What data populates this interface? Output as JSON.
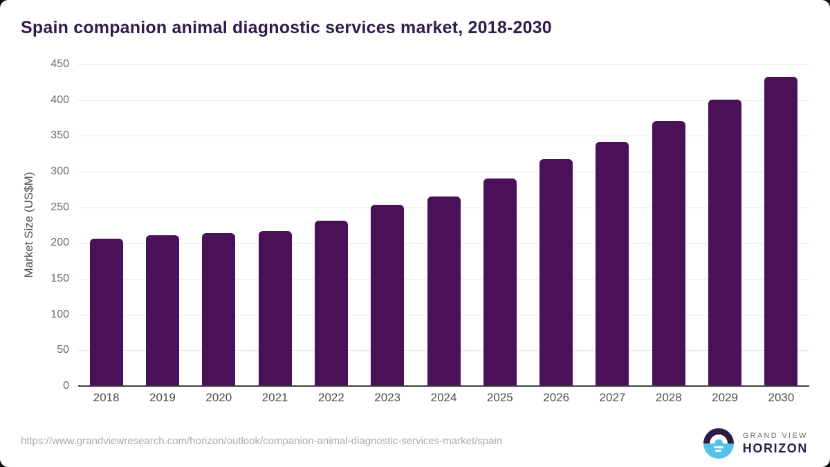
{
  "chart_data": {
    "type": "bar",
    "title": "Spain companion animal diagnostic services market, 2018-2030",
    "xlabel": "",
    "ylabel": "Market Size (US$M)",
    "categories": [
      "2018",
      "2019",
      "2020",
      "2021",
      "2022",
      "2023",
      "2024",
      "2025",
      "2026",
      "2027",
      "2028",
      "2029",
      "2030"
    ],
    "values": [
      205,
      210,
      213,
      216,
      230,
      253,
      264,
      289,
      316,
      341,
      370,
      400,
      432
    ],
    "ylim": [
      0,
      450
    ],
    "ytick_step": 50,
    "yticks": [
      0,
      50,
      100,
      150,
      200,
      250,
      300,
      350,
      400,
      450
    ],
    "grid": "horizontal",
    "legend": "none",
    "bar_color": "#4a1159"
  },
  "colors": {
    "title_text": "#311b4b",
    "axis_text": "#4f4f4f",
    "tick_text": "#6b6b6b",
    "gridline": "#e8e8e8",
    "axis_line": "#404040",
    "url_text": "#a9a9a9",
    "logo_purple": "#2d1a45",
    "logo_blue": "#56c2ea",
    "logo_gray_text": "#6e6878"
  },
  "footer": {
    "source_url": "https://www.grandviewresearch.com/horizon/outlook/companion-animal-diagnostic-services-market/spain",
    "logo": {
      "line1": "GRAND VIEW",
      "line2": "HORIZON"
    }
  }
}
